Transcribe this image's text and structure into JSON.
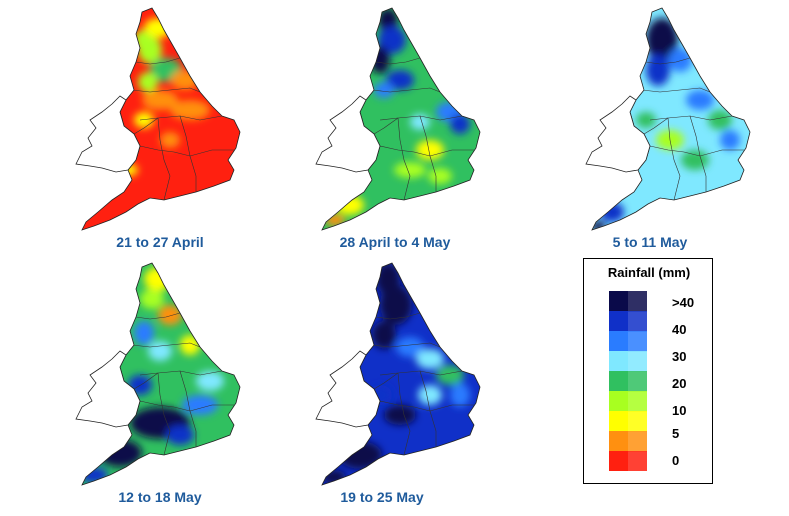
{
  "map": {
    "panels": [
      {
        "caption": "21 to 27 April",
        "scheme": "dry"
      },
      {
        "caption": "28 April to 4 May",
        "scheme": "mixed-wet-north"
      },
      {
        "caption": "5 to 11 May",
        "scheme": "moderate"
      },
      {
        "caption": "12 to 18 May",
        "scheme": "wet-southwest"
      },
      {
        "caption": "19 to 25 May",
        "scheme": "very-wet"
      }
    ],
    "legend": {
      "title": "Rainfall (mm)",
      "labels": [
        ">40",
        "40",
        "30",
        "20",
        "10",
        "5",
        "0"
      ],
      "colors": [
        "#0a0a4a",
        "#1030c8",
        "#2a7cff",
        "#7fe8ff",
        "#30c060",
        "#a8ff20",
        "#ffff00",
        "#ff9010",
        "#ff2010"
      ]
    }
  }
}
